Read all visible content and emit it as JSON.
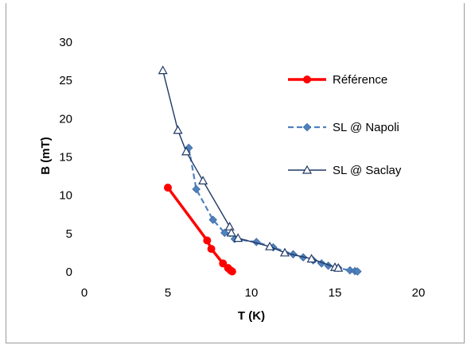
{
  "chart_data": {
    "type": "scatter",
    "xlabel": "T (K)",
    "ylabel": "B (mT)",
    "xlim": [
      0,
      20
    ],
    "ylim": [
      0,
      30
    ],
    "xticks": [
      0,
      5,
      10,
      15,
      20
    ],
    "yticks": [
      0,
      5,
      10,
      15,
      20,
      25,
      30
    ],
    "grid": false,
    "legend": "right",
    "series": [
      {
        "name": "Référence",
        "color": "#ff0000",
        "marker": "circle",
        "line": "solid",
        "x": [
          5.0,
          7.35,
          7.6,
          8.3,
          8.6,
          8.75,
          8.85
        ],
        "y": [
          11.0,
          4.1,
          3.0,
          1.1,
          0.5,
          0.2,
          0.05
        ]
      },
      {
        "name": "SL @ Napoli",
        "color": "#4f81bd",
        "marker": "diamond",
        "line": "dashed",
        "x": [
          6.25,
          6.7,
          7.7,
          8.4,
          9.0,
          10.3,
          11.3,
          12.5,
          13.1,
          13.7,
          14.2,
          14.6,
          15.2,
          15.9,
          16.2,
          16.35
        ],
        "y": [
          16.2,
          10.8,
          6.8,
          5.1,
          4.3,
          3.9,
          3.2,
          2.3,
          1.9,
          1.5,
          1.1,
          0.8,
          0.5,
          0.2,
          0.1,
          0.05
        ]
      },
      {
        "name": "SL @ Saclay",
        "color": "#1f3864",
        "marker": "triangle-open",
        "line": "solid",
        "x": [
          4.7,
          5.6,
          6.1,
          7.1,
          8.7,
          8.8,
          9.2,
          11.1,
          12.0,
          13.6,
          15.0,
          15.2
        ],
        "y": [
          26.3,
          18.5,
          15.7,
          11.9,
          5.9,
          5.1,
          4.4,
          3.3,
          2.5,
          1.7,
          0.6,
          0.5
        ]
      }
    ]
  }
}
